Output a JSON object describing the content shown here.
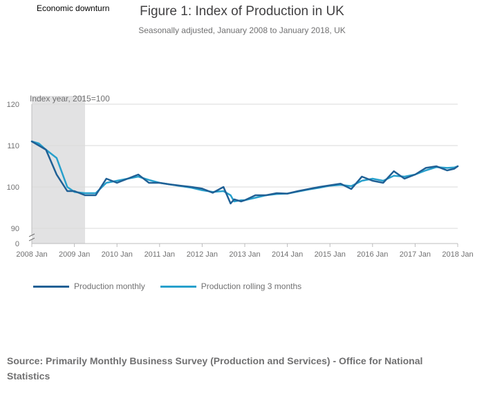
{
  "chart_data": {
    "type": "line",
    "title": "Figure 1: Index of Production in UK",
    "subtitle": "Seasonally adjusted, January 2008 to January 2018, UK",
    "ylabel": "Index year, 2015=100",
    "xlabel": "",
    "ylim": [
      90,
      120
    ],
    "y_break_value": 0,
    "yticks": [
      90,
      100,
      110,
      120
    ],
    "ytick_labels": [
      "90",
      "100",
      "110",
      "120"
    ],
    "xlim": [
      0,
      120
    ],
    "xticks": [
      0,
      12,
      24,
      36,
      48,
      60,
      72,
      84,
      96,
      108,
      120
    ],
    "xtick_labels": [
      "2008 Jan",
      "2009 Jan",
      "2010 Jan",
      "2011 Jan",
      "2012 Jan",
      "2013 Jan",
      "2014 Jan",
      "2015 Jan",
      "2016 Jan",
      "2017 Jan",
      "2018 Jan"
    ],
    "grid": true,
    "shaded_region": {
      "label": "Economic downturn",
      "x_start": 0,
      "x_end": 15
    },
    "x_anchors": [
      0,
      2,
      4,
      7,
      10,
      12,
      15,
      18,
      21,
      24,
      27,
      30,
      33,
      36,
      39,
      42,
      45,
      48,
      51,
      54,
      56,
      57,
      59,
      60,
      63,
      66,
      69,
      72,
      75,
      78,
      81,
      84,
      87,
      90,
      93,
      96,
      99,
      102,
      105,
      108,
      111,
      114,
      117,
      119,
      120
    ],
    "series": [
      {
        "name": "Production monthly",
        "color": "#206095",
        "values": [
          111,
          110,
          109,
          103,
          99,
          99,
          98,
          98,
          102,
          101,
          102,
          103,
          101,
          101,
          100.6,
          100.3,
          100,
          99.6,
          98.6,
          100,
          96,
          97,
          96.5,
          96.8,
          98,
          98,
          98.5,
          98.4,
          99,
          99.5,
          100,
          100.4,
          100.8,
          99.5,
          102.5,
          101.5,
          101,
          103.8,
          102,
          103,
          104.6,
          105,
          104,
          104.4,
          105
        ]
      },
      {
        "name": "Production rolling 3 months",
        "color": "#27a0cc",
        "values": [
          111,
          110.5,
          109,
          107,
          100,
          98.8,
          98.5,
          98.5,
          101,
          101.5,
          102,
          102.5,
          101.7,
          101,
          100.6,
          100.2,
          99.8,
          99.2,
          98.8,
          99,
          98,
          96.5,
          96.8,
          96.8,
          97.4,
          98,
          98.3,
          98.4,
          98.9,
          99.4,
          99.8,
          100.3,
          100.5,
          100.2,
          101.5,
          102,
          101.5,
          102.7,
          102.5,
          103,
          104,
          104.8,
          104.6,
          104.7,
          105
        ]
      }
    ]
  },
  "legend": {
    "monthly_label": "Production monthly",
    "rolling_label": "Production rolling 3 months"
  },
  "source": "Source: Primarily Monthly Business Survey (Production and Services) - Office for National Statistics"
}
